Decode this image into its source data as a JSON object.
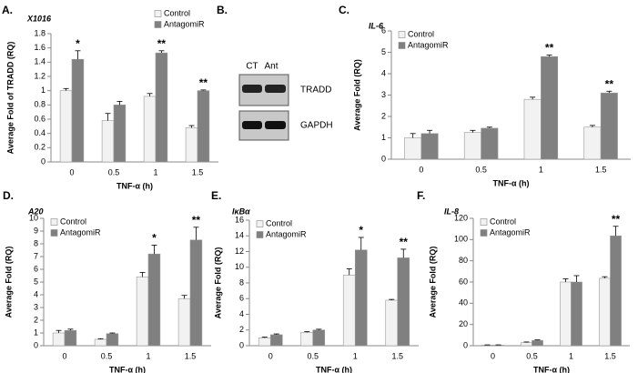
{
  "chart_data": [
    {
      "type": "bar",
      "panel": "A.",
      "title": "X1016",
      "y_label": "Average Fold of TRADD (RQ)",
      "x_label": "TNF-α (h)",
      "categories": [
        "0",
        "0.5",
        "1",
        "1.5"
      ],
      "series": [
        {
          "name": "Control",
          "color": "#f2f2f2",
          "values": [
            1.0,
            0.58,
            0.92,
            0.48
          ],
          "errors": [
            0.03,
            0.1,
            0.04,
            0.03
          ]
        },
        {
          "name": "AntagomiR",
          "color": "#808080",
          "values": [
            1.44,
            0.8,
            1.53,
            1.0
          ],
          "errors": [
            0.12,
            0.05,
            0.03,
            0.01
          ]
        }
      ],
      "significance": [
        "*",
        null,
        "**",
        "**"
      ],
      "ylim": [
        0,
        1.8
      ],
      "yticks": [
        0,
        0.2,
        0.4,
        0.6,
        0.8,
        1,
        1.2,
        1.4,
        1.6,
        1.8
      ],
      "legend": "upper right"
    },
    {
      "type": "bar",
      "panel": "C.",
      "title": "IL-6",
      "y_label": "Average Fold (RQ)",
      "x_label": "TNF-α (h)",
      "categories": [
        "0",
        "0.5",
        "1",
        "1.5"
      ],
      "series": [
        {
          "name": "Control",
          "color": "#f2f2f2",
          "values": [
            1.0,
            1.25,
            2.8,
            1.5
          ],
          "errors": [
            0.2,
            0.1,
            0.1,
            0.08
          ]
        },
        {
          "name": "AntagomiR",
          "color": "#808080",
          "values": [
            1.2,
            1.45,
            4.8,
            3.1
          ],
          "errors": [
            0.15,
            0.05,
            0.07,
            0.08
          ]
        }
      ],
      "significance": [
        null,
        null,
        "**",
        "**"
      ],
      "ylim": [
        0,
        6
      ],
      "yticks": [
        0,
        1,
        2,
        3,
        4,
        5,
        6
      ],
      "legend": "upper left"
    },
    {
      "type": "bar",
      "panel": "D.",
      "title": "A20",
      "y_label": "Average Fold (RQ)",
      "x_label": "TNF-α (h)",
      "categories": [
        "0",
        "0.5",
        "1",
        "1.5"
      ],
      "series": [
        {
          "name": "Control",
          "color": "#f2f2f2",
          "values": [
            1.0,
            0.5,
            5.4,
            3.7
          ],
          "errors": [
            0.2,
            0.05,
            0.35,
            0.25
          ]
        },
        {
          "name": "AntagomiR",
          "color": "#808080",
          "values": [
            1.2,
            0.95,
            7.2,
            8.3
          ],
          "errors": [
            0.1,
            0.05,
            0.7,
            1.0
          ]
        }
      ],
      "significance": [
        null,
        null,
        "*",
        "**"
      ],
      "ylim": [
        0,
        10
      ],
      "yticks": [
        0,
        1,
        2,
        3,
        4,
        5,
        6,
        7,
        8,
        9,
        10
      ],
      "legend": "upper left"
    },
    {
      "type": "bar",
      "panel": "E.",
      "title": "IκBα",
      "y_label": "Average Fold (RQ)",
      "x_label": "TNF-α (h)",
      "categories": [
        "0",
        "0.5",
        "1",
        "1.5"
      ],
      "series": [
        {
          "name": "Control",
          "color": "#f2f2f2",
          "values": [
            1.0,
            1.7,
            9.0,
            5.8
          ],
          "errors": [
            0.1,
            0.1,
            0.8,
            0.1
          ]
        },
        {
          "name": "AntagomiR",
          "color": "#808080",
          "values": [
            1.4,
            2.0,
            12.2,
            11.2
          ],
          "errors": [
            0.1,
            0.1,
            1.6,
            1.1
          ]
        }
      ],
      "significance": [
        null,
        null,
        "*",
        "**"
      ],
      "ylim": [
        0,
        16
      ],
      "yticks": [
        0,
        2,
        4,
        6,
        8,
        10,
        12,
        14,
        16
      ],
      "legend": "upper left"
    },
    {
      "type": "bar",
      "panel": "F.",
      "title": "IL-8",
      "y_label": "Average Fold (RQ)",
      "x_label": "TNF-α (h)",
      "categories": [
        "0",
        "0.5",
        "1",
        "1.5"
      ],
      "series": [
        {
          "name": "Control",
          "color": "#f2f2f2",
          "values": [
            0.5,
            3,
            60,
            63.5
          ],
          "errors": [
            0.3,
            0.5,
            3,
            1.5
          ]
        },
        {
          "name": "AntagomiR",
          "color": "#808080",
          "values": [
            0.5,
            5,
            60,
            103.5
          ],
          "errors": [
            0.3,
            0.5,
            6,
            9
          ]
        }
      ],
      "significance": [
        null,
        null,
        null,
        "**"
      ],
      "ylim": [
        0,
        120
      ],
      "yticks": [
        0,
        20,
        40,
        60,
        80,
        100,
        120
      ],
      "legend": "upper left"
    }
  ],
  "blot": {
    "panel": "B.",
    "lanes": [
      "CT",
      "Ant"
    ],
    "bands": [
      "TRADD",
      "GAPDH"
    ]
  }
}
